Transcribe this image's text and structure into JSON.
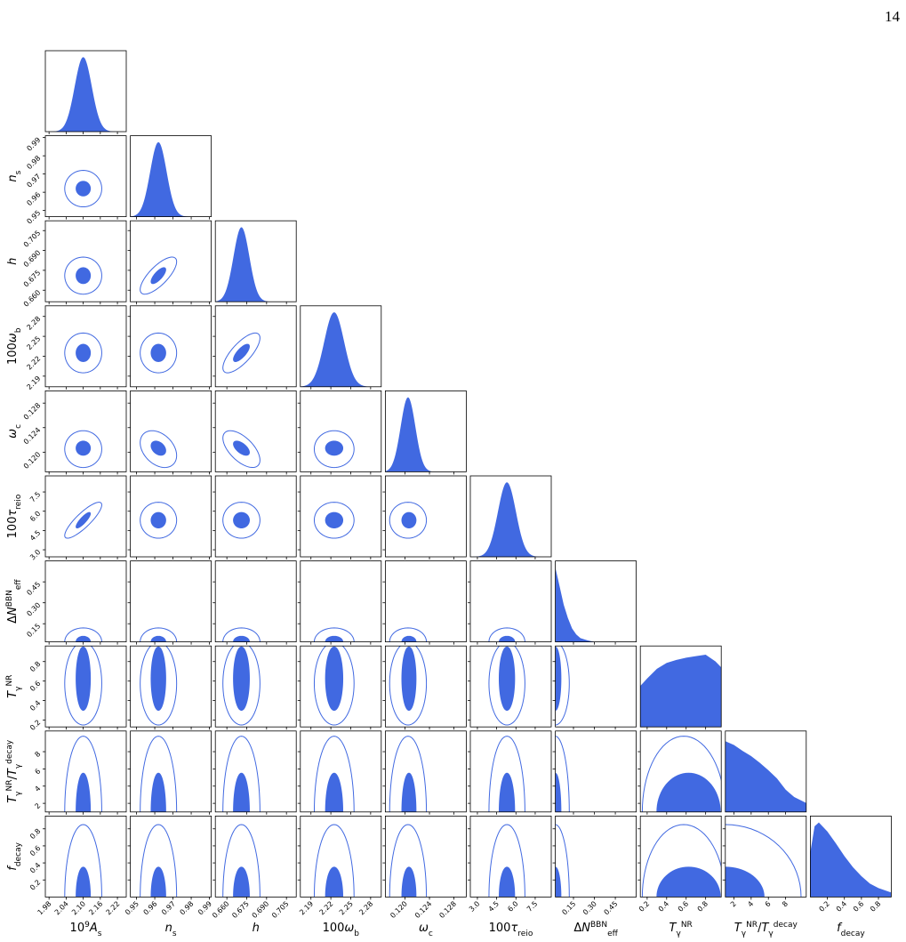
{
  "page": {
    "number": "14"
  },
  "chart_data": {
    "type": "corner",
    "color": "#4169e1",
    "params": [
      {
        "label": [
          [
            "10",
            "n"
          ],
          [
            "9",
            "sup"
          ],
          [
            "A",
            "i"
          ],
          [
            "s",
            "sub"
          ]
        ],
        "lim": [
          1.967,
          2.251
        ],
        "ticks": [
          1.98,
          2.04,
          {
            "value": 2.1,
            "label": "2.10"
          },
          2.16,
          2.22
        ],
        "peak": 2.1,
        "sigma": 0.03,
        "inner": [
          2.075,
          2.125
        ],
        "outer": [
          2.035,
          2.165
        ]
      },
      {
        "label": [
          [
            "n",
            "i"
          ],
          [
            "s",
            "sub"
          ]
        ],
        "lim": [
          0.9466,
          0.991
        ],
        "ticks": [
          0.95,
          0.96,
          0.97,
          0.98,
          0.99
        ],
        "peak": 0.962,
        "sigma": 0.0045,
        "inner": [
          0.958,
          0.966
        ],
        "outer": [
          0.952,
          0.972
        ]
      },
      {
        "label": [
          [
            "h",
            "i"
          ]
        ],
        "lim": [
          0.6513,
          0.7124
        ],
        "ticks": [
          {
            "value": 0.66,
            "label": "0.660"
          },
          0.675,
          {
            "value": 0.69,
            "label": "0.690"
          },
          0.705
        ],
        "peak": 0.671,
        "sigma": 0.006,
        "inner": [
          0.665,
          0.677
        ],
        "outer": [
          0.657,
          0.685
        ]
      },
      {
        "label": [
          [
            "100",
            "n"
          ],
          [
            "ω",
            "i"
          ],
          [
            "b",
            "sub"
          ]
        ],
        "lim": [
          2.174,
          2.296
        ],
        "ticks": [
          2.19,
          2.22,
          2.25,
          2.28
        ],
        "peak": 2.225,
        "sigma": 0.015,
        "inner": [
          2.212,
          2.238
        ],
        "outer": [
          2.195,
          2.255
        ]
      },
      {
        "label": [
          [
            "ω",
            "i"
          ],
          [
            "c",
            "sub"
          ]
        ],
        "lim": [
          0.1168,
          0.13
        ],
        "ticks": [
          {
            "value": 0.12,
            "label": "0.120"
          },
          0.124,
          0.128
        ],
        "peak": 0.1205,
        "sigma": 0.0012,
        "inner": [
          0.1195,
          0.1218
        ],
        "outer": [
          0.1175,
          0.1235
        ]
      },
      {
        "label": [
          [
            "100",
            "n"
          ],
          [
            "τ",
            "i"
          ],
          [
            "reio",
            "sub"
          ]
        ],
        "lim": [
          2.45,
          8.75
        ],
        "ticks": [
          {
            "value": 3,
            "label": "3.0"
          },
          4.5,
          {
            "value": 6,
            "label": "6.0"
          },
          7.5
        ],
        "peak": 5.3,
        "sigma": 0.7,
        "inner": [
          4.7,
          5.9
        ],
        "outer": [
          3.9,
          6.7
        ]
      },
      {
        "label": [
          [
            "Δ",
            "n"
          ],
          [
            "N",
            "i"
          ],
          [
            "BBN",
            "sup"
          ],
          [
            "eff",
            "sub"
          ]
        ],
        "lim": [
          0.02,
          0.6
        ],
        "ticks": [
          0.15,
          {
            "value": 0.3,
            "label": "0.30"
          },
          0.45
        ],
        "edge": true,
        "density": {
          "x": [
            0.02,
            0.05,
            0.08,
            0.11,
            0.14,
            0.17,
            0.2,
            0.25,
            0.3
          ],
          "y": [
            1,
            0.75,
            0.5,
            0.32,
            0.18,
            0.1,
            0.05,
            0.02,
            0
          ]
        },
        "inner": [
          0.02,
          0.06
        ],
        "outer": [
          0.02,
          0.12
        ]
      },
      {
        "label": [
          [
            "T",
            "i"
          ],
          [
            "γ",
            "sub"
          ],
          [
            "NR",
            "sup"
          ]
        ],
        "lim": [
          0.13,
          0.96
        ],
        "ticks": [
          0.2,
          0.4,
          0.6,
          0.8
        ],
        "density": {
          "x": [
            0.13,
            0.2,
            0.3,
            0.4,
            0.5,
            0.6,
            0.7,
            0.8,
            0.9,
            0.96
          ],
          "y": [
            0.55,
            0.65,
            0.78,
            0.86,
            0.9,
            0.93,
            0.95,
            0.97,
            0.88,
            0.8
          ]
        },
        "inner": [
          0.3,
          0.95
        ],
        "outer": [
          0.15,
          1.0
        ]
      },
      {
        "label": [
          [
            "T",
            "i"
          ],
          [
            "γ",
            "sub"
          ],
          [
            "NR",
            "sup"
          ],
          [
            "/",
            "n"
          ],
          [
            "T",
            "i"
          ],
          [
            "γ",
            "sub"
          ],
          [
            "decay",
            "sup"
          ]
        ],
        "lim": [
          1,
          10.4
        ],
        "ticks": [
          2,
          4,
          6,
          8
        ],
        "edge": true,
        "density": {
          "x": [
            1,
            2,
            3,
            4,
            5,
            6,
            7,
            8,
            9,
            10.4
          ],
          "y": [
            0.95,
            0.9,
            0.82,
            0.75,
            0.66,
            0.56,
            0.45,
            0.3,
            0.2,
            0.12
          ]
        },
        "inner": [
          1,
          5.5
        ],
        "outer": [
          1,
          9.8
        ]
      },
      {
        "label": [
          [
            "f",
            "i"
          ],
          [
            "decay",
            "sub"
          ]
        ],
        "lim": [
          0,
          0.95
        ],
        "ticks": [
          0.2,
          0.4,
          0.6,
          0.8
        ],
        "edge": true,
        "density": {
          "x": [
            0,
            0.05,
            0.1,
            0.2,
            0.3,
            0.4,
            0.5,
            0.6,
            0.7,
            0.8,
            0.95
          ],
          "y": [
            0.6,
            0.95,
            1,
            0.88,
            0.72,
            0.55,
            0.4,
            0.28,
            0.18,
            0.12,
            0.06
          ]
        },
        "inner": [
          0,
          0.35
        ],
        "outer": [
          0,
          0.85
        ]
      }
    ],
    "correlations": [
      [
        5,
        0,
        0.85
      ],
      [
        2,
        1,
        0.75
      ],
      [
        3,
        2,
        0.75
      ],
      [
        4,
        2,
        -0.6
      ],
      [
        4,
        1,
        -0.35
      ]
    ]
  }
}
